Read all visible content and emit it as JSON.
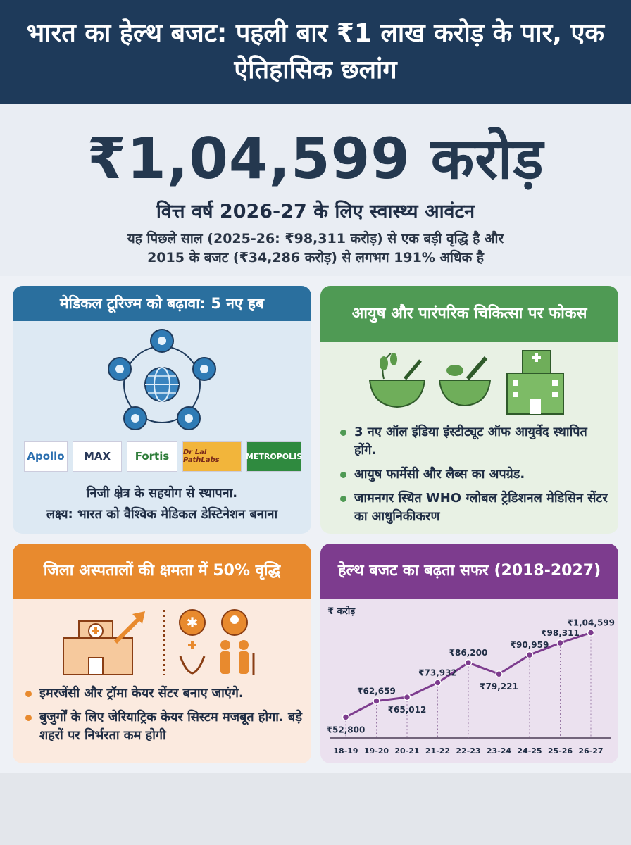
{
  "header": {
    "title": "भारत का हेल्थ बजट: पहली बार ₹1 लाख करोड़ के पार, एक ऐतिहासिक छलांग"
  },
  "hero": {
    "amount": "₹1,04,599 करोड़",
    "subtitle": "वित्त वर्ष 2026-27 के लिए स्वास्थ्य आवंटन",
    "desc_line1": "यह पिछले साल (2025-26: ₹98,311 करोड़) से एक बड़ी वृद्धि है और",
    "desc_line2": "2015 के बजट (₹34,286 करोड़) से लगभग 191% अधिक है"
  },
  "tourism": {
    "title": "मेडिकल टूरिज्म को बढ़ावा: 5 नए हब",
    "logos": [
      "Apollo",
      "MAX",
      "Fortis",
      "Dr Lal PathLabs",
      "METROPOLIS"
    ],
    "note_line1": "निजी क्षेत्र के सहयोग से स्थापना.",
    "note_line2": "लक्ष्य: भारत को वैश्विक मेडिकल डेस्टिनेशन बनाना",
    "icons": [
      "globe-icon",
      "virus-icon"
    ]
  },
  "ayush": {
    "title": "आयुष और पारंपरिक चिकित्सा पर फोकस",
    "bullets": [
      "3 नए ऑल इंडिया इंस्टीट्यूट ऑफ आयुर्वेद स्थापित होंगे.",
      "आयुष फार्मेसी और लैब्स का अपग्रेड.",
      "जामनगर स्थित WHO ग्लोबल ट्रेडिशनल मेडिसिन सेंटर का आधुनिकीकरण"
    ],
    "icons": [
      "herb-bowl-icon",
      "mortar-pestle-icon",
      "hospital-icon"
    ]
  },
  "district": {
    "title": "जिला अस्पतालों की क्षमता में 50% वृद्धि",
    "bullets": [
      "इमरजेंसी और ट्रॉमा केयर सेंटर बनाए जाएंगे.",
      "बुजुर्गों के लिए जेरियाट्रिक केयर सिस्टम मजबूत होगा. बड़े शहरों पर निर्भरता कम होगी"
    ],
    "icons": [
      "hospital-growth-icon",
      "emergency-icon",
      "elderly-care-icon",
      "care-hands-icon",
      "elderly-couple-icon"
    ]
  },
  "colors": {
    "navy": "#1e3a5a",
    "blue": "#2a6f9e",
    "green": "#4f9a54",
    "orange": "#e88a2e",
    "purple": "#7d3c8e"
  },
  "chart_data": {
    "type": "line",
    "title": "हेल्थ बजट का बढ़ता सफर (2018-2027)",
    "ylabel": "₹ करोड़",
    "categories": [
      "18-19",
      "19-20",
      "20-21",
      "21-22",
      "22-23",
      "23-24",
      "24-25",
      "25-26",
      "26-27"
    ],
    "values": [
      52800,
      62659,
      65012,
      73932,
      86200,
      79221,
      90959,
      98311,
      104599
    ],
    "labels": [
      "₹52,800",
      "₹62,659",
      "₹65,012",
      "₹73,932",
      "₹86,200",
      "₹79,221",
      "₹90,959",
      "₹98,311",
      "₹1,04,599"
    ],
    "ylim": [
      40000,
      110000
    ]
  }
}
